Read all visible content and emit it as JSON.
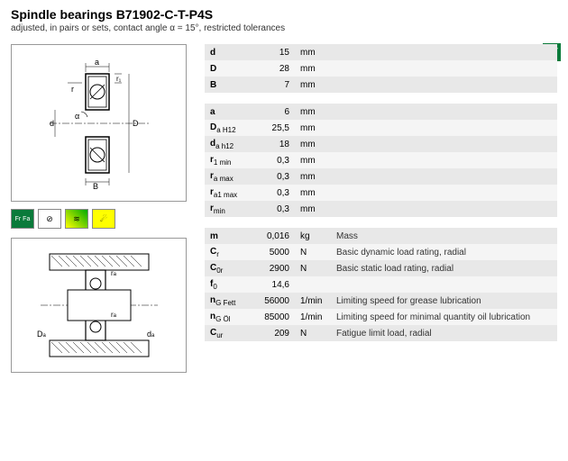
{
  "header": {
    "title": "Spindle bearings B71902-C-T-P4S",
    "subtitle": "adjusted, in pairs or sets, contact angle α = 15°, restricted tolerances"
  },
  "colors": {
    "badge": "#0a7a3a",
    "row_odd": "#e8e8e8",
    "row_even": "#f5f5f5",
    "border": "#999999"
  },
  "table1": {
    "rows": [
      {
        "sym": "d",
        "val": "15",
        "unit": "mm"
      },
      {
        "sym": "D",
        "val": "28",
        "unit": "mm"
      },
      {
        "sym": "B",
        "val": "7",
        "unit": "mm"
      }
    ]
  },
  "table2": {
    "rows": [
      {
        "sym": "a",
        "val": "6",
        "unit": "mm"
      },
      {
        "sym": "D<sub>a H12</sub>",
        "val": "25,5",
        "unit": "mm"
      },
      {
        "sym": "d<sub>a h12</sub>",
        "val": "18",
        "unit": "mm"
      },
      {
        "sym": "r<sub>1 min</sub>",
        "val": "0,3",
        "unit": "mm"
      },
      {
        "sym": "r<sub>a max</sub>",
        "val": "0,3",
        "unit": "mm"
      },
      {
        "sym": "r<sub>a1 max</sub>",
        "val": "0,3",
        "unit": "mm"
      },
      {
        "sym": "r<sub>min</sub>",
        "val": "0,3",
        "unit": "mm"
      }
    ]
  },
  "table3": {
    "rows": [
      {
        "sym": "m",
        "val": "0,016",
        "unit": "kg",
        "desc": "Mass"
      },
      {
        "sym": "C<sub>r</sub>",
        "val": "5000",
        "unit": "N",
        "desc": "Basic dynamic load rating, radial"
      },
      {
        "sym": "C<sub>0r</sub>",
        "val": "2900",
        "unit": "N",
        "desc": "Basic static load rating, radial"
      },
      {
        "sym": "f<sub>0</sub>",
        "val": "14,6",
        "unit": "",
        "desc": ""
      },
      {
        "sym": "n<sub>G Fett</sub>",
        "val": "56000",
        "unit": "1/min",
        "desc": "Limiting speed for grease lubrication"
      },
      {
        "sym": "n<sub>G Öl</sub>",
        "val": "85000",
        "unit": "1/min",
        "desc": "Limiting speed for minimal quantity oil lubrication"
      },
      {
        "sym": "C<sub>ur</sub>",
        "val": "209",
        "unit": "N",
        "desc": "Fatigue limit load, radial"
      }
    ]
  },
  "icons": [
    "Fr Fa",
    "⊘",
    "≋",
    "☄"
  ]
}
